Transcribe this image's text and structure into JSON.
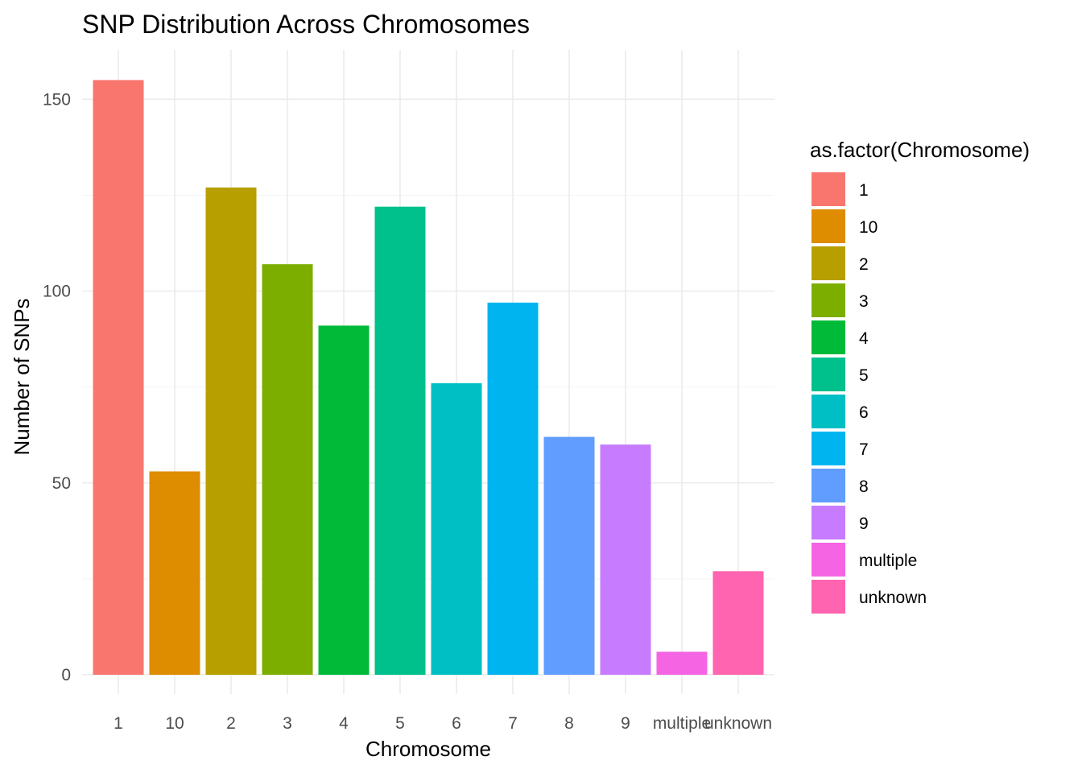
{
  "chart_data": {
    "type": "bar",
    "title": "SNP Distribution Across Chromosomes",
    "xlabel": "Chromosome",
    "ylabel": "Number of SNPs",
    "categories": [
      "1",
      "10",
      "2",
      "3",
      "4",
      "5",
      "6",
      "7",
      "8",
      "9",
      "multiple",
      "unknown"
    ],
    "values": [
      155,
      53,
      127,
      107,
      91,
      122,
      76,
      97,
      62,
      60,
      6,
      27
    ],
    "ylim": [
      0,
      162
    ],
    "yticks": [
      0,
      50,
      100,
      150
    ],
    "grid": true,
    "legend": {
      "title": "as.factor(Chromosome)",
      "position": "right",
      "entries": [
        "1",
        "10",
        "2",
        "3",
        "4",
        "5",
        "6",
        "7",
        "8",
        "9",
        "multiple",
        "unknown"
      ]
    },
    "colors": [
      "#F8766D",
      "#DE8C00",
      "#B79F00",
      "#7CAE00",
      "#00BA38",
      "#00C08B",
      "#00BFC4",
      "#00B4F0",
      "#619CFF",
      "#C77CFF",
      "#F564E3",
      "#FF64B0"
    ]
  }
}
